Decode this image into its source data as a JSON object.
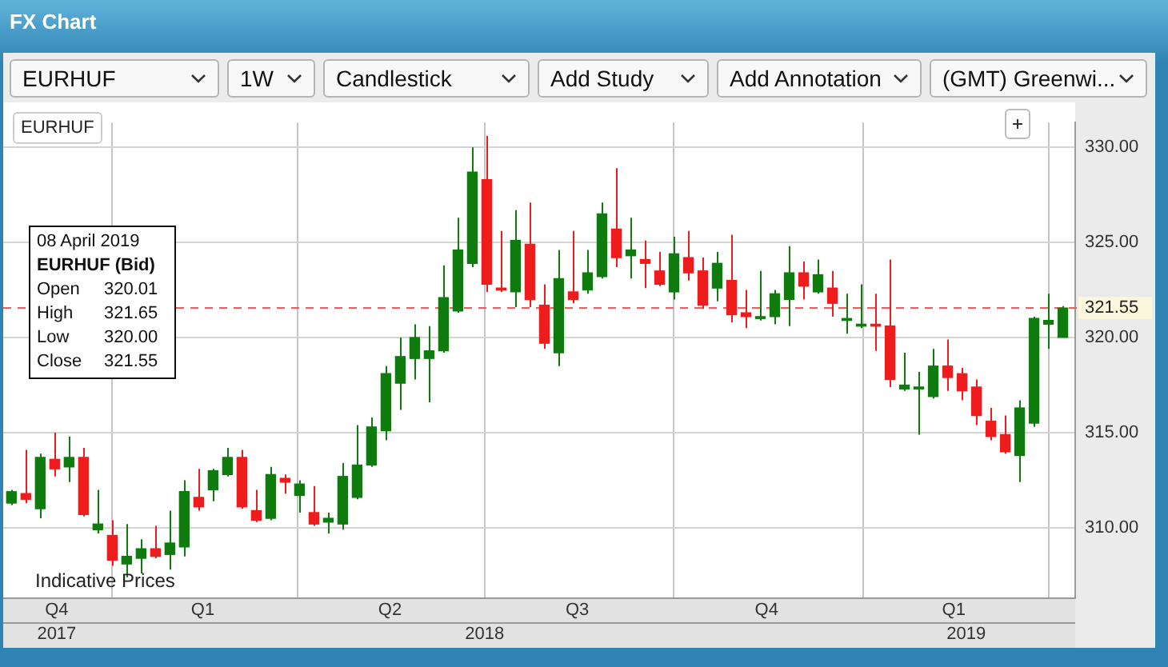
{
  "chart_data": {
    "type": "candlestick",
    "title": "FX Chart",
    "x": [
      "2017-11-13",
      "2017-11-20",
      "2017-11-27",
      "2017-12-04",
      "2017-12-11",
      "2017-12-18",
      "2017-12-25",
      "2018-01-01",
      "2018-01-08",
      "2018-01-15",
      "2018-01-22",
      "2018-01-29",
      "2018-02-05",
      "2018-02-12",
      "2018-02-19",
      "2018-02-26",
      "2018-03-05",
      "2018-03-12",
      "2018-03-19",
      "2018-03-26",
      "2018-04-02",
      "2018-04-09",
      "2018-04-16",
      "2018-04-23",
      "2018-04-30",
      "2018-05-07",
      "2018-05-14",
      "2018-05-21",
      "2018-05-28",
      "2018-06-04",
      "2018-06-11",
      "2018-06-18",
      "2018-06-25",
      "2018-07-02",
      "2018-07-09",
      "2018-07-16",
      "2018-07-23",
      "2018-07-30",
      "2018-08-06",
      "2018-08-13",
      "2018-08-20",
      "2018-08-27",
      "2018-09-03",
      "2018-09-10",
      "2018-09-17",
      "2018-09-24",
      "2018-10-01",
      "2018-10-08",
      "2018-10-15",
      "2018-10-22",
      "2018-10-29",
      "2018-11-05",
      "2018-11-12",
      "2018-11-19",
      "2018-11-26",
      "2018-12-03",
      "2018-12-10",
      "2018-12-17",
      "2018-12-24",
      "2018-12-31",
      "2019-01-07",
      "2019-01-14",
      "2019-01-21",
      "2019-01-28",
      "2019-02-04",
      "2019-02-11",
      "2019-02-18",
      "2019-02-25",
      "2019-03-04",
      "2019-03-11",
      "2019-03-18",
      "2019-03-25",
      "2019-04-01",
      "2019-04-08"
    ],
    "ohlc": [
      [
        311.3,
        312.0,
        311.2,
        311.9
      ],
      [
        311.8,
        314.1,
        311.3,
        311.5
      ],
      [
        311.0,
        313.9,
        310.5,
        313.7
      ],
      [
        313.6,
        315.0,
        312.7,
        313.1
      ],
      [
        313.2,
        314.8,
        312.4,
        313.7
      ],
      [
        313.7,
        314.2,
        310.6,
        310.7
      ],
      [
        309.9,
        312.0,
        309.7,
        310.2
      ],
      [
        309.6,
        310.4,
        308.0,
        308.3
      ],
      [
        308.1,
        310.2,
        307.4,
        308.5
      ],
      [
        308.4,
        309.4,
        307.6,
        308.9
      ],
      [
        308.9,
        310.1,
        308.4,
        308.5
      ],
      [
        308.6,
        310.9,
        307.8,
        309.2
      ],
      [
        309.0,
        312.5,
        308.5,
        311.9
      ],
      [
        311.6,
        313.1,
        310.9,
        311.1
      ],
      [
        312.0,
        313.1,
        311.4,
        313.0
      ],
      [
        312.8,
        314.2,
        312.7,
        313.7
      ],
      [
        313.7,
        314.1,
        311.0,
        311.1
      ],
      [
        310.9,
        312.0,
        310.3,
        310.4
      ],
      [
        310.5,
        313.2,
        310.4,
        312.8
      ],
      [
        312.6,
        312.8,
        311.8,
        312.4
      ],
      [
        311.7,
        312.5,
        310.8,
        312.3
      ],
      [
        310.8,
        312.2,
        310.1,
        310.2
      ],
      [
        310.3,
        310.8,
        309.7,
        310.5
      ],
      [
        310.2,
        313.4,
        309.9,
        312.7
      ],
      [
        311.6,
        315.4,
        311.5,
        313.3
      ],
      [
        313.3,
        315.8,
        313.2,
        315.3
      ],
      [
        315.1,
        318.5,
        314.6,
        318.1
      ],
      [
        317.6,
        320.0,
        316.2,
        319.0
      ],
      [
        318.9,
        320.7,
        317.8,
        320.0
      ],
      [
        318.9,
        320.6,
        316.6,
        319.3
      ],
      [
        319.3,
        323.8,
        319.2,
        322.1
      ],
      [
        321.4,
        326.3,
        321.3,
        324.6
      ],
      [
        323.9,
        330.0,
        323.7,
        328.7
      ],
      [
        328.3,
        330.6,
        322.4,
        322.8
      ],
      [
        322.6,
        325.6,
        322.4,
        322.5
      ],
      [
        322.4,
        326.7,
        321.6,
        325.1
      ],
      [
        324.9,
        327.1,
        321.6,
        322.0
      ],
      [
        321.7,
        322.8,
        319.4,
        319.7
      ],
      [
        319.2,
        324.6,
        318.5,
        323.1
      ],
      [
        322.4,
        325.6,
        321.8,
        322.0
      ],
      [
        322.5,
        324.6,
        322.3,
        323.4
      ],
      [
        323.2,
        327.1,
        323.1,
        326.5
      ],
      [
        325.7,
        328.9,
        323.7,
        324.2
      ],
      [
        324.3,
        326.3,
        323.1,
        324.6
      ],
      [
        324.1,
        325.1,
        322.6,
        323.9
      ],
      [
        323.5,
        324.5,
        322.7,
        322.8
      ],
      [
        322.4,
        325.3,
        322.0,
        324.4
      ],
      [
        324.2,
        325.6,
        323.0,
        323.4
      ],
      [
        323.5,
        324.2,
        321.5,
        321.7
      ],
      [
        322.6,
        324.5,
        321.9,
        323.9
      ],
      [
        323.0,
        325.4,
        320.8,
        321.2
      ],
      [
        321.3,
        322.5,
        320.5,
        321.1
      ],
      [
        321.0,
        323.5,
        320.9,
        321.1
      ],
      [
        321.1,
        322.5,
        320.7,
        322.3
      ],
      [
        322.0,
        324.8,
        320.6,
        323.4
      ],
      [
        323.4,
        324.0,
        322.0,
        322.7
      ],
      [
        322.4,
        324.1,
        322.3,
        323.3
      ],
      [
        322.6,
        323.5,
        321.1,
        321.8
      ],
      [
        320.9,
        322.3,
        320.2,
        321.0
      ],
      [
        320.6,
        322.8,
        320.5,
        320.7
      ],
      [
        320.7,
        322.3,
        319.3,
        320.6
      ],
      [
        320.6,
        324.1,
        317.4,
        317.8
      ],
      [
        317.3,
        319.2,
        317.2,
        317.5
      ],
      [
        317.3,
        318.2,
        314.9,
        317.4
      ],
      [
        316.9,
        319.4,
        316.8,
        318.5
      ],
      [
        318.5,
        319.9,
        317.2,
        317.9
      ],
      [
        318.1,
        318.4,
        316.7,
        317.2
      ],
      [
        317.4,
        317.8,
        315.4,
        315.9
      ],
      [
        315.6,
        316.3,
        314.6,
        314.8
      ],
      [
        314.9,
        315.9,
        313.9,
        314.0
      ],
      [
        313.8,
        316.7,
        312.4,
        316.3
      ],
      [
        315.5,
        321.1,
        315.3,
        321.0
      ],
      [
        320.7,
        322.3,
        319.4,
        320.9
      ],
      [
        320.01,
        321.65,
        320.0,
        321.55
      ]
    ],
    "colors": [
      "#0f7b0f",
      "#ee1c1c",
      "#0f7b0f",
      "#ee1c1c",
      "#0f7b0f",
      "#ee1c1c",
      "#0f7b0f",
      "#ee1c1c",
      "#0f7b0f",
      "#0f7b0f",
      "#ee1c1c",
      "#0f7b0f",
      "#0f7b0f",
      "#ee1c1c",
      "#0f7b0f",
      "#0f7b0f",
      "#ee1c1c",
      "#ee1c1c",
      "#0f7b0f",
      "#ee1c1c",
      "#0f7b0f",
      "#ee1c1c",
      "#0f7b0f",
      "#0f7b0f",
      "#0f7b0f",
      "#0f7b0f",
      "#0f7b0f",
      "#0f7b0f",
      "#0f7b0f",
      "#0f7b0f",
      "#0f7b0f",
      "#0f7b0f",
      "#0f7b0f",
      "#ee1c1c",
      "#ee1c1c",
      "#0f7b0f",
      "#ee1c1c",
      "#ee1c1c",
      "#0f7b0f",
      "#ee1c1c",
      "#0f7b0f",
      "#0f7b0f",
      "#ee1c1c",
      "#0f7b0f",
      "#ee1c1c",
      "#ee1c1c",
      "#0f7b0f",
      "#ee1c1c",
      "#ee1c1c",
      "#0f7b0f",
      "#ee1c1c",
      "#ee1c1c",
      "#0f7b0f",
      "#0f7b0f",
      "#0f7b0f",
      "#ee1c1c",
      "#0f7b0f",
      "#ee1c1c",
      "#0f7b0f",
      "#0f7b0f",
      "#ee1c1c",
      "#ee1c1c",
      "#0f7b0f",
      "#0f7b0f",
      "#0f7b0f",
      "#ee1c1c",
      "#ee1c1c",
      "#ee1c1c",
      "#ee1c1c",
      "#ee1c1c",
      "#0f7b0f",
      "#0f7b0f",
      "#0f7b0f",
      "#0f7b0f"
    ],
    "xlim": [
      "2017-11-09",
      "2019-04-14"
    ],
    "xticks": [
      {
        "value": "2017-12-05",
        "label": "Q4"
      },
      {
        "value": "2018-01-01",
        "label": null
      },
      {
        "value": "2018-02-14",
        "label": "Q1"
      },
      {
        "value": "2018-04-01",
        "label": null
      },
      {
        "value": "2018-05-16",
        "label": "Q2"
      },
      {
        "value": "2018-07-01",
        "label": null
      },
      {
        "value": "2018-08-15",
        "label": "Q3"
      },
      {
        "value": "2018-10-01",
        "label": null
      },
      {
        "value": "2018-11-15",
        "label": "Q4"
      },
      {
        "value": "2019-01-01",
        "label": null
      },
      {
        "value": "2019-02-14",
        "label": "Q1"
      },
      {
        "value": "2019-04-01",
        "label": null
      }
    ],
    "x2lim": [
      "2017-11-09",
      "2019-04-14"
    ],
    "x2ticks": [
      {
        "value": "2017-12-05",
        "label": "2017"
      },
      {
        "value": "2018-07-01",
        "label": "2018"
      },
      {
        "value": "2019-02-20",
        "label": "2019"
      }
    ],
    "ylim": [
      306.3,
      331.3
    ],
    "yticks": [
      {
        "value": 310,
        "label": "310.00"
      },
      {
        "value": 315,
        "label": "315.00"
      },
      {
        "value": 320,
        "label": "320.00"
      },
      {
        "value": 325,
        "label": "325.00"
      },
      {
        "value": 330,
        "label": "330.00"
      }
    ],
    "ref_lines": [
      {
        "axis": "y",
        "value": 321.55,
        "label": "321.55",
        "color": "#e06666",
        "line_style": "dashed"
      }
    ],
    "grid": true,
    "annotations": [
      "EURHUF",
      "1W",
      "Candlestick",
      "Add Study",
      "Add Annotation",
      "(GMT) Greenwi...",
      "EURHUF",
      "08 April 2019",
      "EURHUF (Bid)",
      "Open 320.01",
      "High 321.65",
      "Low 320.00",
      "Close 321.55",
      "Indicative Prices"
    ]
  }
}
